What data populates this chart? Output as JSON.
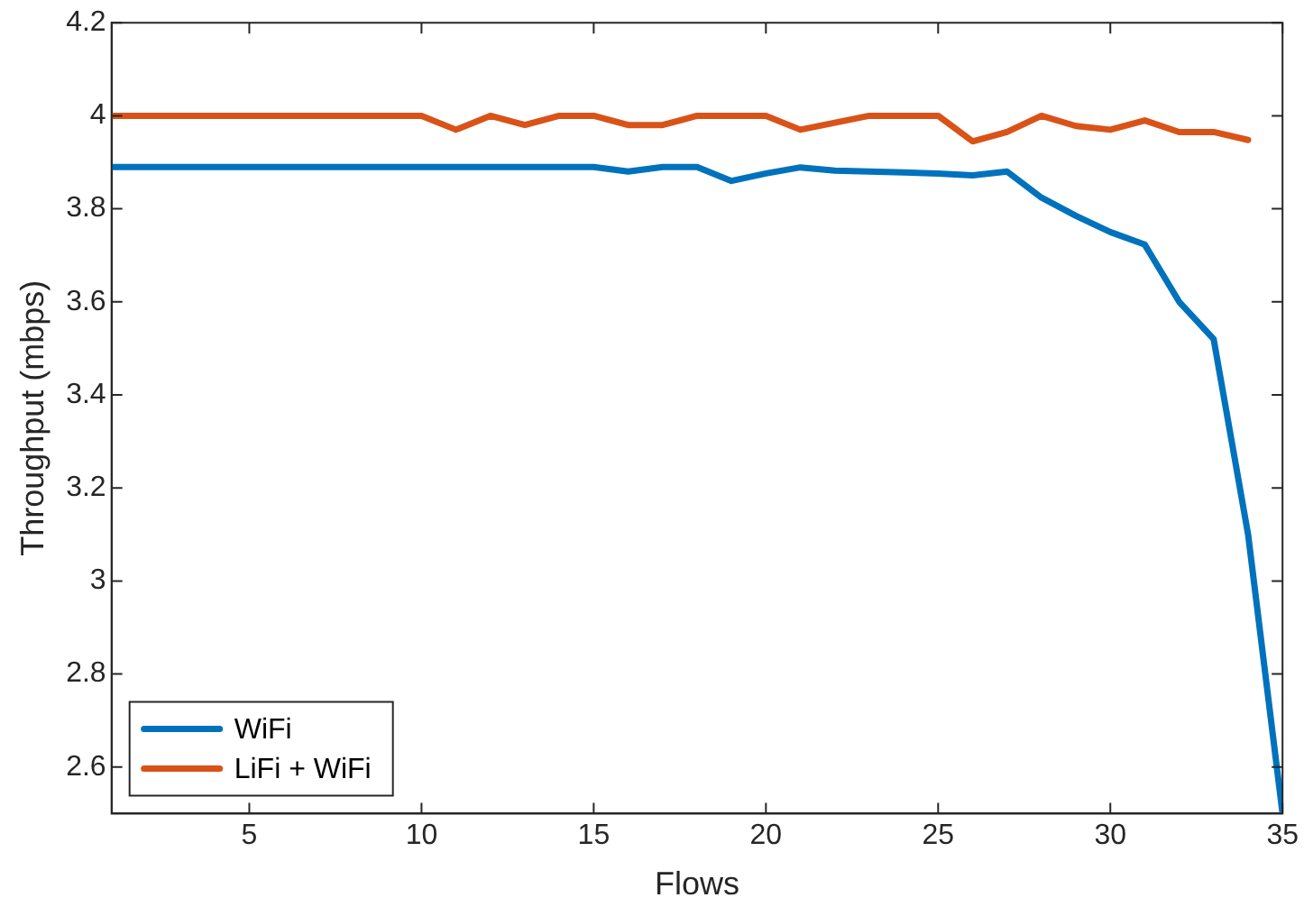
{
  "chart_data": {
    "type": "line",
    "xlabel": "Flows",
    "ylabel": "Throughput (mbps)",
    "x": [
      1,
      2,
      3,
      4,
      5,
      6,
      7,
      8,
      9,
      10,
      11,
      12,
      13,
      14,
      15,
      16,
      17,
      18,
      19,
      20,
      21,
      22,
      23,
      24,
      25,
      26,
      27,
      28,
      29,
      30,
      31,
      32,
      33,
      34,
      35
    ],
    "series": [
      {
        "name": "WiFi",
        "color": "#0072bd",
        "values": [
          3.89,
          3.89,
          3.89,
          3.89,
          3.89,
          3.89,
          3.89,
          3.89,
          3.89,
          3.89,
          3.89,
          3.89,
          3.89,
          3.89,
          3.89,
          3.88,
          3.89,
          3.89,
          3.86,
          3.876,
          3.889,
          3.882,
          3.88,
          3.878,
          3.876,
          3.872,
          3.88,
          3.824,
          3.785,
          3.75,
          3.723,
          3.6,
          3.52,
          3.1,
          2.5
        ]
      },
      {
        "name": "LiFi + WiFi",
        "color": "#d95319",
        "values": [
          4.0,
          4.0,
          4.0,
          4.0,
          4.0,
          4.0,
          4.0,
          4.0,
          4.0,
          4.0,
          3.97,
          4.0,
          3.98,
          4.0,
          4.0,
          3.98,
          3.98,
          4.0,
          4.0,
          4.0,
          3.97,
          3.985,
          4.0,
          4.0,
          4.0,
          3.945,
          3.965,
          4.0,
          3.978,
          3.97,
          3.99,
          3.965,
          3.965,
          3.948,
          null
        ]
      }
    ],
    "xlim": [
      1,
      35
    ],
    "xticks": [
      5,
      10,
      15,
      20,
      25,
      30,
      35
    ],
    "ylim": [
      2.5,
      4.2
    ],
    "yticks": [
      2.6,
      2.8,
      3,
      3.2,
      3.4,
      3.6,
      3.8,
      4,
      4.2
    ],
    "grid": false,
    "legend": "bottom left",
    "marker": "none",
    "line_style": "solid"
  }
}
